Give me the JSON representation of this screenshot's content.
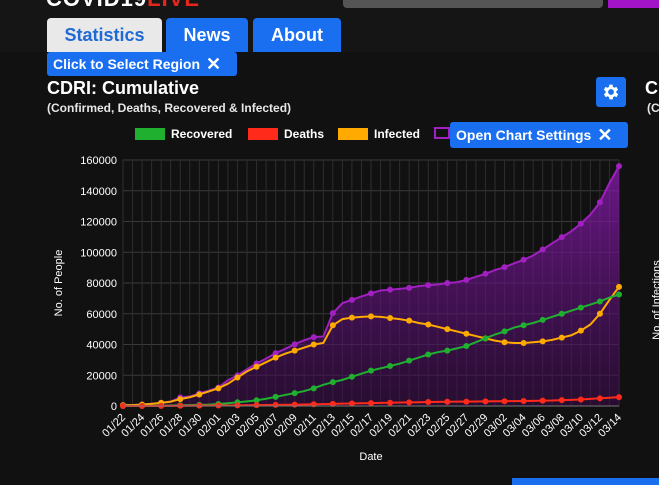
{
  "app": {
    "logo_main": "COVID19",
    "logo_accent": "LIVE"
  },
  "tabs": [
    {
      "label": "Statistics"
    },
    {
      "label": "News"
    },
    {
      "label": "About"
    }
  ],
  "region_tooltip": {
    "label": "Click to Select Region",
    "close": "✕"
  },
  "chart_panel": {
    "title": "CDRI: Cumulative",
    "subtitle": "(Confirmed, Deaths, Recovered & Infected)",
    "settings_tooltip": {
      "label": "Open Chart Settings",
      "close": "✕"
    },
    "right_title_partial": "C",
    "right_subtitle_partial": "(C",
    "right_ylabel_partial": "No. of Infections"
  },
  "colors": {
    "recovered": "#20b030",
    "deaths": "#ff2a1a",
    "infected": "#ffaa00",
    "confirmed": "#a020c0",
    "accent": "#1a6ff0"
  },
  "chart_data": {
    "type": "line",
    "title": "",
    "xlabel": "Date",
    "ylabel": "No. of People",
    "ylim": [
      0,
      160000
    ],
    "yticks": [
      "0",
      "20000",
      "40000",
      "60000",
      "80000",
      "100000",
      "120000",
      "140000",
      "160000"
    ],
    "x": [
      "01/22",
      "01/23",
      "01/24",
      "01/25",
      "01/26",
      "01/27",
      "01/28",
      "01/29",
      "01/30",
      "01/31",
      "02/01",
      "02/02",
      "02/03",
      "02/04",
      "02/05",
      "02/06",
      "02/07",
      "02/08",
      "02/09",
      "02/10",
      "02/11",
      "02/12",
      "02/13",
      "02/14",
      "02/15",
      "02/16",
      "02/17",
      "02/18",
      "02/19",
      "02/20",
      "02/21",
      "02/22",
      "02/23",
      "02/24",
      "02/25",
      "02/26",
      "02/27",
      "02/28",
      "02/29",
      "03/01",
      "03/02",
      "03/03",
      "03/04",
      "03/05",
      "03/06",
      "03/07",
      "03/08",
      "03/09",
      "03/10",
      "03/11",
      "03/12",
      "03/13",
      "03/14"
    ],
    "xtick_labels": [
      "01/22",
      "01/24",
      "01/26",
      "01/28",
      "01/30",
      "02/01",
      "02/03",
      "02/05",
      "02/07",
      "02/09",
      "02/11",
      "02/13",
      "02/15",
      "02/17",
      "02/19",
      "02/21",
      "02/23",
      "02/25",
      "02/27",
      "02/29",
      "03/02",
      "03/04",
      "03/06",
      "03/08",
      "03/10",
      "03/12",
      "03/14"
    ],
    "grid": true,
    "legend_position": "top",
    "series": [
      {
        "name": "Recovered",
        "color": "#20b030",
        "values": [
          30,
          60,
          50,
          100,
          150,
          300,
          500,
          600,
          700,
          900,
          1300,
          1800,
          2400,
          3000,
          3700,
          4700,
          5900,
          7200,
          8400,
          9700,
          11500,
          13800,
          15500,
          17000,
          19000,
          21000,
          23000,
          24500,
          26000,
          27500,
          29500,
          31500,
          33500,
          35000,
          36000,
          37500,
          39000,
          41500,
          44000,
          46500,
          48500,
          51000,
          52500,
          54000,
          56000,
          58000,
          60000,
          62000,
          64000,
          66000,
          68000,
          70500,
          72500
        ]
      },
      {
        "name": "Deaths",
        "color": "#ff2a1a",
        "values": [
          20,
          20,
          30,
          40,
          60,
          80,
          130,
          170,
          210,
          260,
          300,
          360,
          430,
          490,
          560,
          630,
          720,
          810,
          910,
          1010,
          1110,
          1260,
          1370,
          1520,
          1660,
          1770,
          1870,
          2010,
          2120,
          2250,
          2360,
          2460,
          2620,
          2700,
          2770,
          2810,
          2860,
          2920,
          2980,
          3050,
          3110,
          3200,
          3280,
          3350,
          3460,
          3560,
          3800,
          4000,
          4260,
          4600,
          5000,
          5400,
          5800
        ]
      },
      {
        "name": "Infected",
        "color": "#ffaa00",
        "values": [
          500,
          600,
          900,
          1400,
          2000,
          2800,
          4500,
          5700,
          7500,
          9500,
          11500,
          14500,
          18500,
          22500,
          25500,
          28500,
          31500,
          34000,
          36000,
          38000,
          40000,
          41000,
          52500,
          56500,
          57500,
          58000,
          58300,
          58000,
          57200,
          56500,
          55500,
          54000,
          53000,
          51500,
          50000,
          48500,
          47000,
          45500,
          44000,
          42500,
          41500,
          41000,
          41000,
          41500,
          42000,
          43000,
          44500,
          46000,
          49000,
          53000,
          60000,
          69000,
          77500
        ]
      },
      {
        "name": "Confirmed",
        "color": "#a020c0",
        "values": [
          555,
          650,
          940,
          1440,
          2120,
          2930,
          5580,
          6170,
          8240,
          9930,
          12040,
          16790,
          19880,
          23900,
          27640,
          30820,
          34400,
          37130,
          40160,
          42770,
          44830,
          45230,
          60370,
          66890,
          69050,
          71230,
          73270,
          75150,
          75650,
          76200,
          76840,
          77990,
          78630,
          79000,
          80000,
          80500,
          82000,
          84000,
          86000,
          88400,
          90300,
          92800,
          95100,
          97900,
          101800,
          105800,
          109800,
          113600,
          118600,
          124500,
          132500,
          145000,
          156000
        ]
      }
    ]
  }
}
